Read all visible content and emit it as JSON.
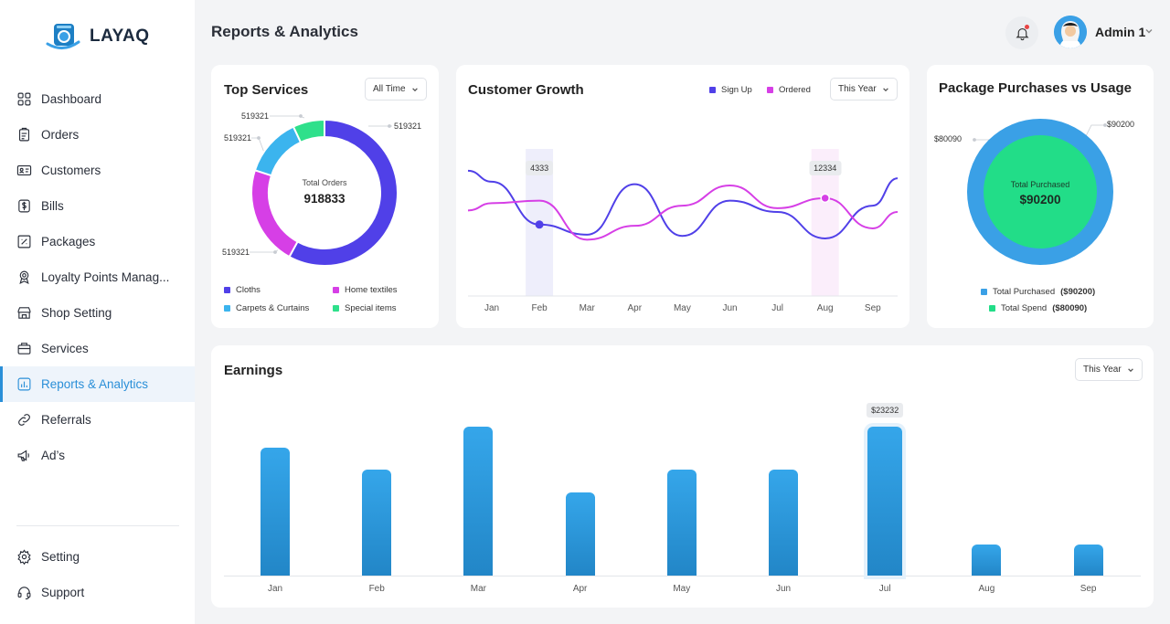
{
  "app": {
    "brand": "LAYAQ",
    "page_title": "Reports & Analytics",
    "admin_name": "Admin 1"
  },
  "sidebar": {
    "items": [
      {
        "label": "Dashboard",
        "icon": "grid-icon"
      },
      {
        "label": "Orders",
        "icon": "clipboard-icon"
      },
      {
        "label": "Customers",
        "icon": "id-card-icon"
      },
      {
        "label": "Bills",
        "icon": "dollar-icon"
      },
      {
        "label": "Packages",
        "icon": "package-icon"
      },
      {
        "label": "Loyalty Points Manag...",
        "icon": "award-icon"
      },
      {
        "label": "Shop Setting",
        "icon": "shop-icon"
      },
      {
        "label": "Services",
        "icon": "briefcase-icon"
      },
      {
        "label": "Reports & Analytics",
        "icon": "chart-icon",
        "active": true
      },
      {
        "label": "Referrals",
        "icon": "link-icon"
      },
      {
        "label": "Ad’s",
        "icon": "megaphone-icon"
      }
    ],
    "bottom": [
      {
        "label": "Setting",
        "icon": "gear-icon"
      },
      {
        "label": "Support",
        "icon": "headset-icon"
      }
    ]
  },
  "top_services": {
    "title": "Top Services",
    "filter": "All Time",
    "center_label": "Total Orders",
    "center_value": "918833",
    "callouts": [
      "519321",
      "519321",
      "519321",
      "519321"
    ],
    "legend": [
      {
        "label": "Cloths",
        "color": "#5040e8"
      },
      {
        "label": "Home textiles",
        "color": "#d63fe6"
      },
      {
        "label": "Carpets & Curtains",
        "color": "#3bb4ee"
      },
      {
        "label": "Special items",
        "color": "#2ee08b"
      }
    ]
  },
  "customer_growth": {
    "title": "Customer Growth",
    "filter": "This Year",
    "legend": [
      {
        "label": "Sign Up",
        "color": "#5040e8"
      },
      {
        "label": "Ordered",
        "color": "#d63fe6"
      }
    ],
    "tooltips": [
      "4333",
      "12334"
    ]
  },
  "package": {
    "title": "Package Purchases vs Usage",
    "center_label": "Total Purchased",
    "center_value": "$90200",
    "callout_right": "$90200",
    "callout_left": "$80090",
    "legend": [
      {
        "label": "Total Purchased",
        "value": "($90200)",
        "color": "#3aa0e6"
      },
      {
        "label": "Total Spend",
        "value": "($80090)",
        "color": "#22dd88"
      }
    ]
  },
  "earnings": {
    "title": "Earnings",
    "filter": "This Year",
    "tooltip": "$23232"
  },
  "chart_data": [
    {
      "type": "pie",
      "title": "Top Services",
      "categories": [
        "Cloths",
        "Home textiles",
        "Carpets & Curtains",
        "Special items"
      ],
      "values": [
        58,
        22,
        13,
        7
      ],
      "colors": [
        "#5040e8",
        "#d63fe6",
        "#3bb4ee",
        "#2ee08b"
      ]
    },
    {
      "type": "line",
      "title": "Customer Growth",
      "categories": [
        "Jan",
        "Feb",
        "Mar",
        "Apr",
        "May",
        "Jun",
        "Jul",
        "Aug",
        "Sep"
      ],
      "series": [
        {
          "name": "Sign Up",
          "color": "#5040e8",
          "values": [
            7.4,
            4.0,
            3.2,
            7.2,
            3.1,
            5.9,
            5.0,
            2.9,
            5.5
          ]
        },
        {
          "name": "Ordered",
          "color": "#d63fe6",
          "values": [
            5.7,
            5.9,
            2.8,
            3.9,
            5.5,
            7.1,
            5.3,
            6.1,
            3.7
          ]
        }
      ],
      "highlights": [
        {
          "category": "Feb",
          "label": "4333"
        },
        {
          "category": "Aug",
          "label": "12334"
        }
      ],
      "ylim": [
        0,
        10
      ]
    },
    {
      "type": "bar",
      "title": "Earnings",
      "categories": [
        "Jan",
        "Feb",
        "Mar",
        "Apr",
        "May",
        "Jun",
        "Jul",
        "Aug",
        "Sep"
      ],
      "values": [
        20000,
        16500,
        23200,
        13000,
        16500,
        16500,
        23232,
        4800,
        4800
      ],
      "ylim": [
        0,
        24500
      ],
      "highlight": "Jul"
    }
  ]
}
